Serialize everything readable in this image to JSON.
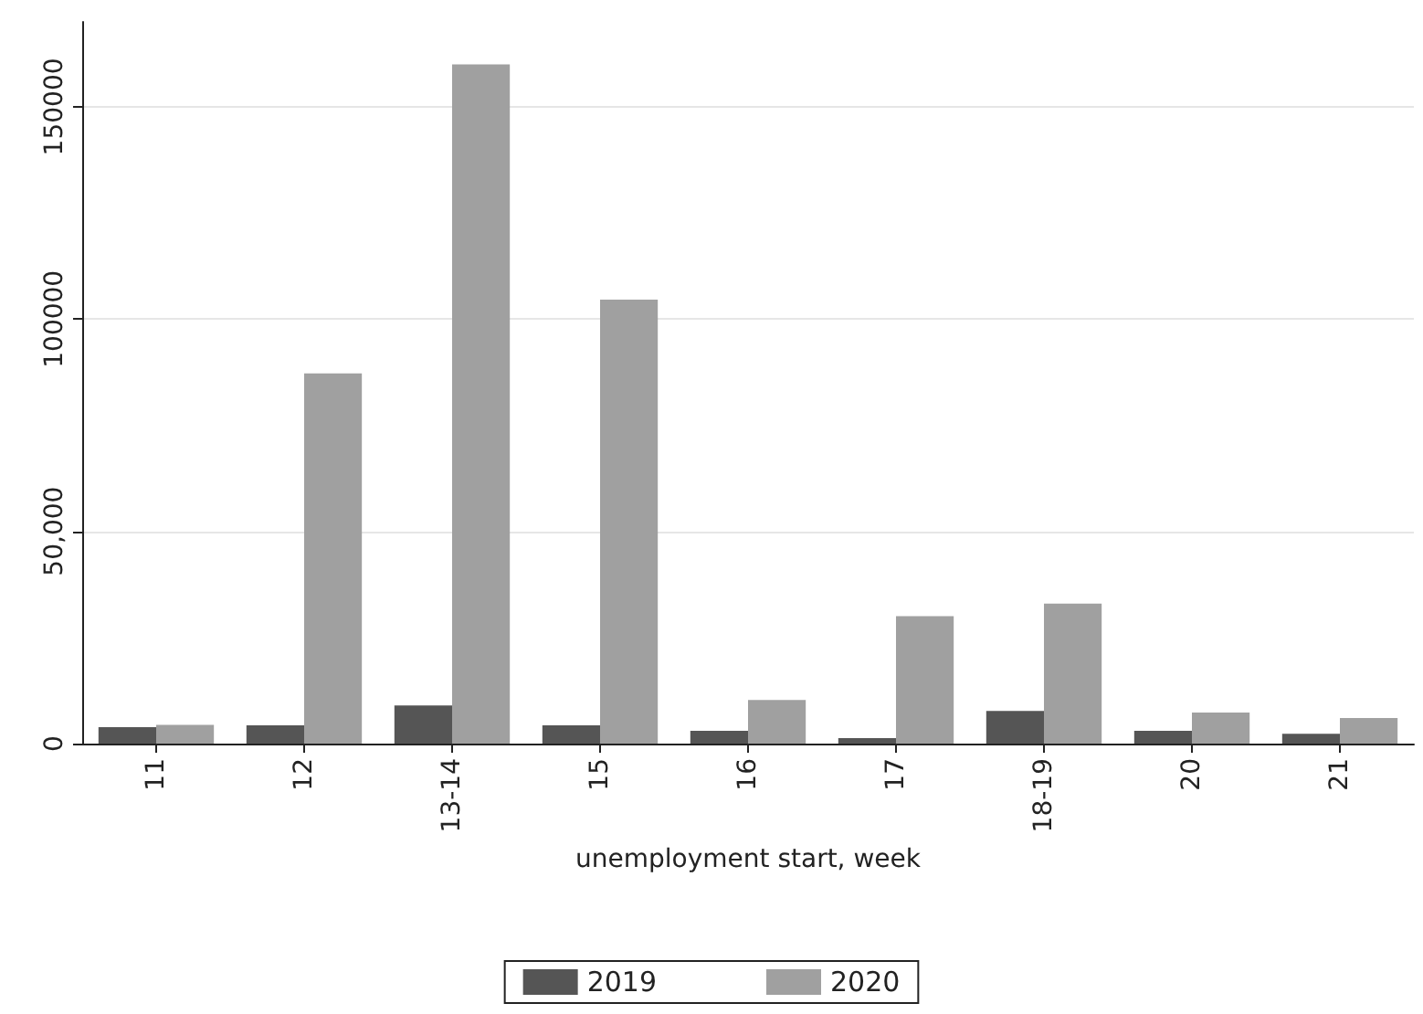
{
  "chart_data": {
    "type": "bar",
    "xlabel": "unemployment start, week",
    "categories": [
      "11",
      "12",
      "13-14",
      "15",
      "16",
      "17",
      "18-19",
      "20",
      "21"
    ],
    "series": [
      {
        "name": "2019",
        "color": "#555555",
        "values": [
          3900,
          4300,
          9000,
          4300,
          3000,
          1300,
          7700,
          3000,
          2300
        ]
      },
      {
        "name": "2020",
        "color": "#a0a0a0",
        "values": [
          4400,
          87200,
          160000,
          104600,
          10300,
          30000,
          33000,
          7300,
          6000
        ]
      }
    ],
    "ylim": [
      0,
      170000
    ],
    "yticks": [
      0,
      {
        "value": 50000,
        "label": "50,000"
      },
      100000,
      150000
    ],
    "grid": "y",
    "legend": "bottom"
  }
}
